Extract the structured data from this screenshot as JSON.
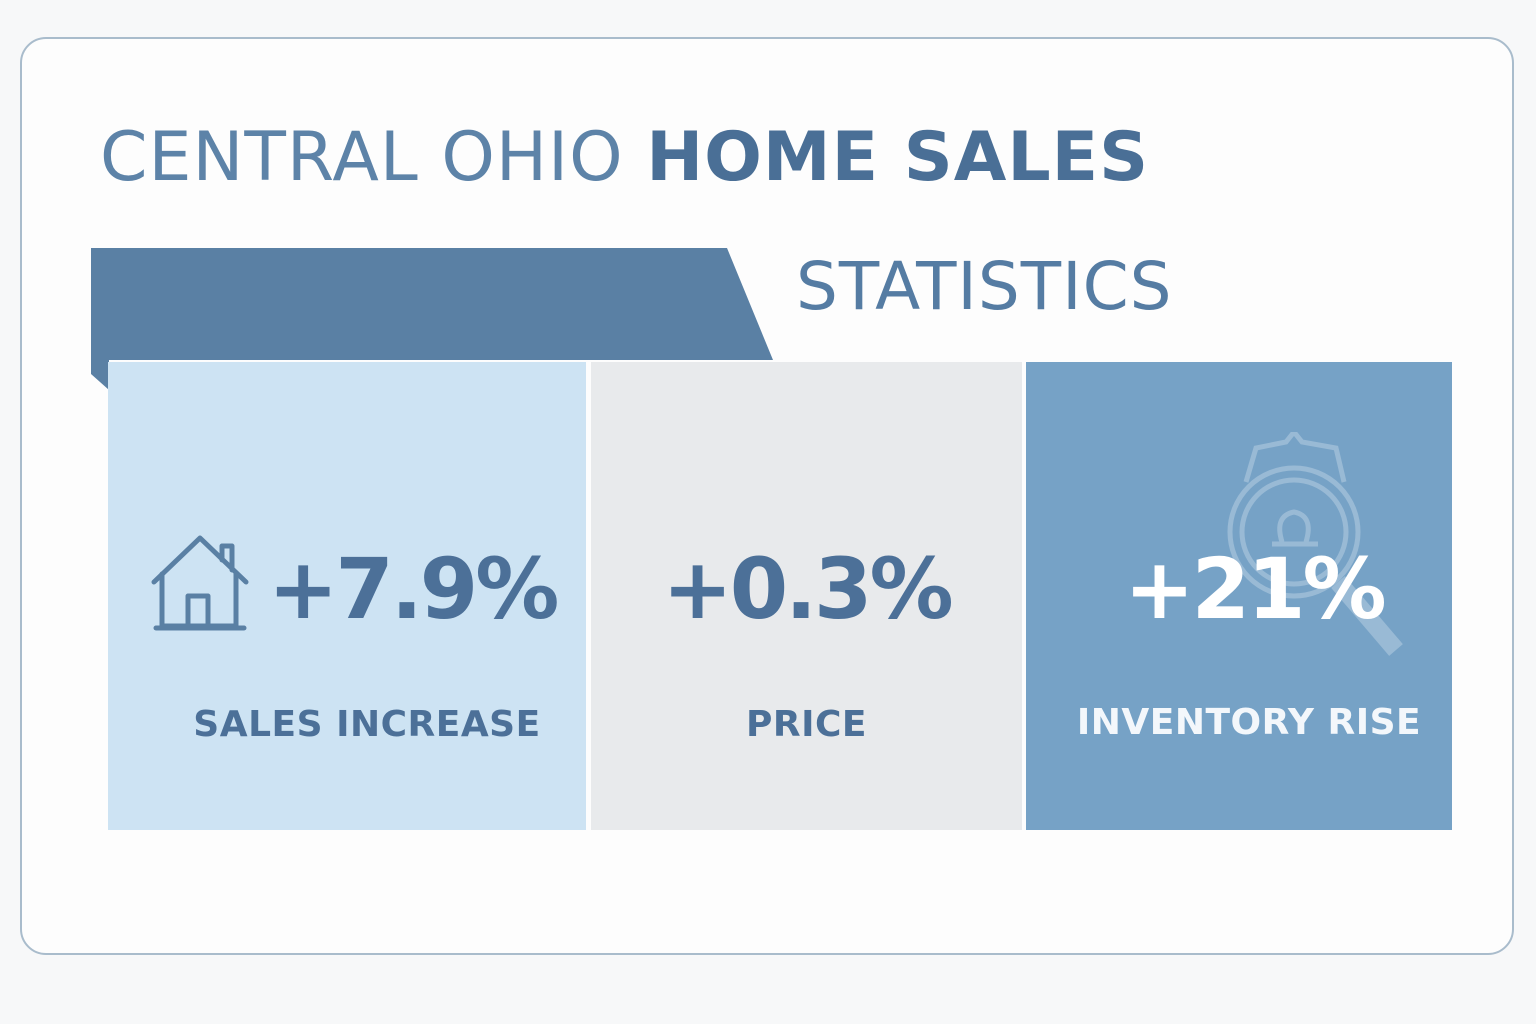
{
  "title": {
    "part1": "CENTRAL OHIO",
    "part2": "HOME SALES"
  },
  "subtitle": "STATISTICS",
  "colors": {
    "accent": "#5a80a4",
    "card_light": "#cde3f3",
    "card_gray": "#e8eaec",
    "card_dark": "#76a2c6",
    "text_dark": "#4c7098"
  },
  "stats": [
    {
      "value": "+7.9%",
      "label": "SALES INCREASE",
      "icon": "house-icon"
    },
    {
      "value": "+0.3%",
      "label": "PRICE"
    },
    {
      "value": "+21%",
      "label": "INVENTORY RISE",
      "icon": "magnifier-icon"
    }
  ]
}
